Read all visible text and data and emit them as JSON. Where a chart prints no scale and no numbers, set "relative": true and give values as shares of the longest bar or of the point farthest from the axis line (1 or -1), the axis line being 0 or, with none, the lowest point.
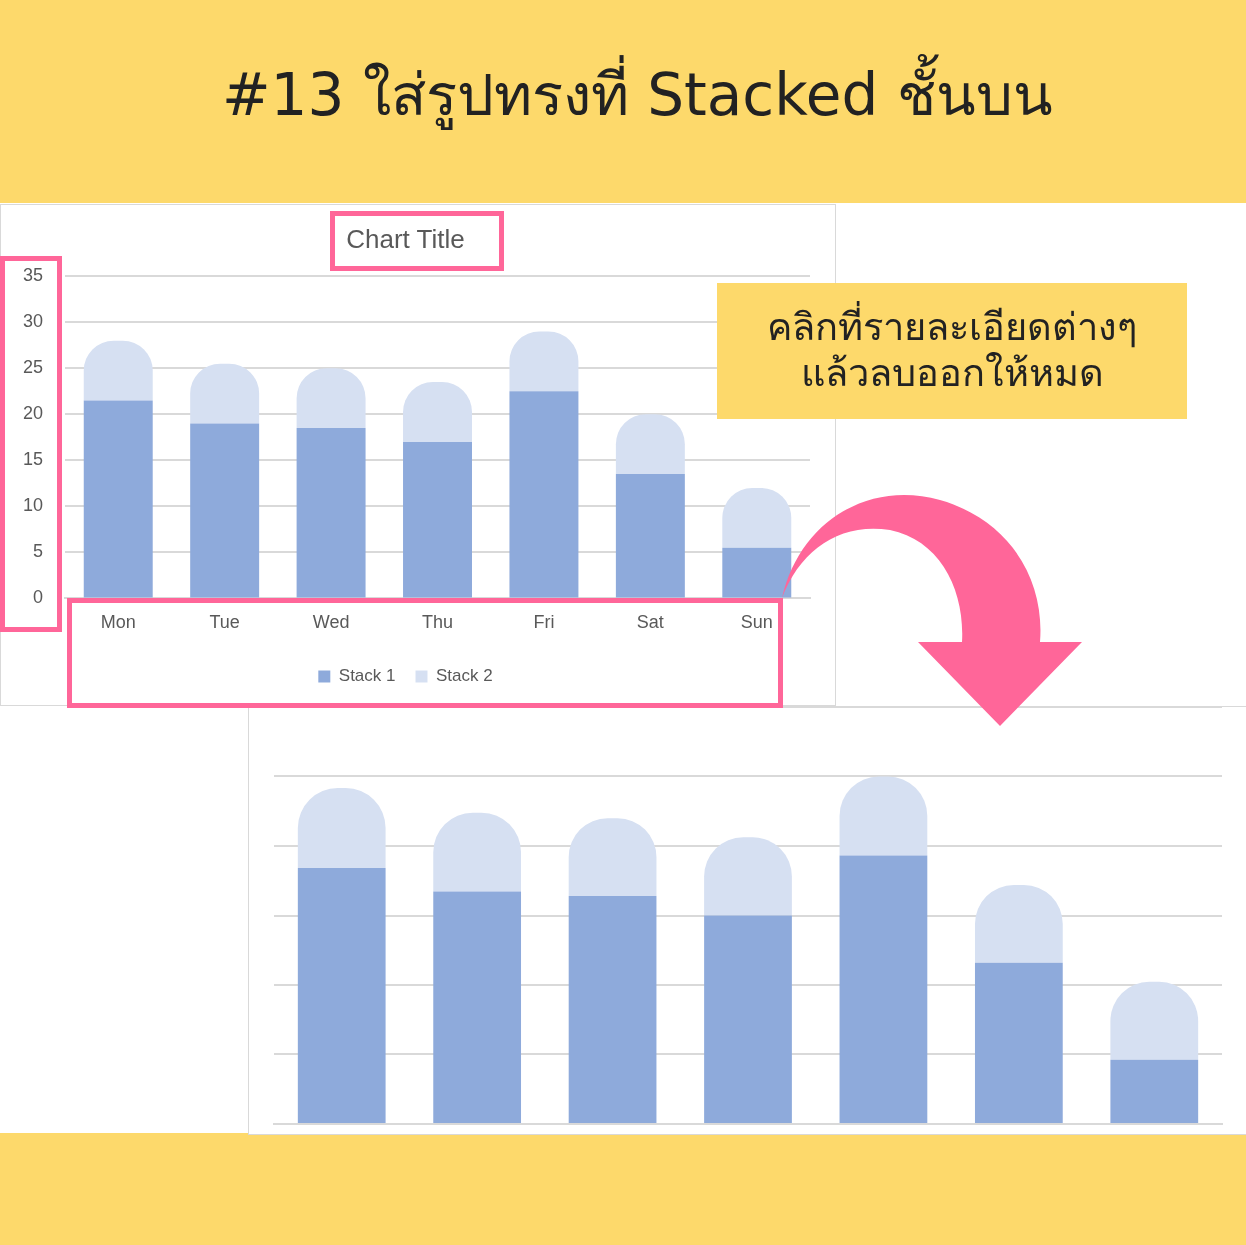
{
  "chart_data": [
    {
      "type": "bar",
      "title": "Chart Title",
      "annotations": [
        "#13 ใส่รูปทรงที่ Stacked ชั้นบน",
        "คลิกที่รายละเอียดต่างๆ\nแล้วลบออกให้หมด"
      ],
      "categories": [
        "Mon",
        "Tue",
        "Wed",
        "Thu",
        "Fri",
        "Sat",
        "Sun"
      ],
      "series": [
        {
          "name": "Stack 1",
          "color": "#8eaadb",
          "values": [
            21.5,
            19,
            18.5,
            17,
            22.5,
            13.5,
            5.5
          ]
        },
        {
          "name": "Stack 2",
          "color": "#d6e0f2",
          "values": [
            6.5,
            6.5,
            6.5,
            6.5,
            6.5,
            6.5,
            6.5
          ]
        }
      ],
      "stacked": true,
      "ylim": [
        0,
        35
      ],
      "yticks": [
        0,
        5,
        10,
        15,
        20,
        25,
        30,
        35
      ],
      "grid": "y",
      "legend": "bottom"
    },
    {
      "type": "bar",
      "relative": true,
      "categories": [
        null,
        null,
        null,
        null,
        null,
        null,
        null
      ],
      "series": [
        {
          "color": "#8eaadb",
          "values": [
            0.737,
            0.669,
            0.656,
            0.6,
            0.773,
            0.464,
            0.185
          ]
        },
        {
          "color": "#d6e0f2",
          "values": [
            0.23,
            0.227,
            0.224,
            0.225,
            0.227,
            0.224,
            0.224
          ]
        }
      ],
      "stacked": true,
      "grid": "y",
      "tick_labels": false
    }
  ]
}
